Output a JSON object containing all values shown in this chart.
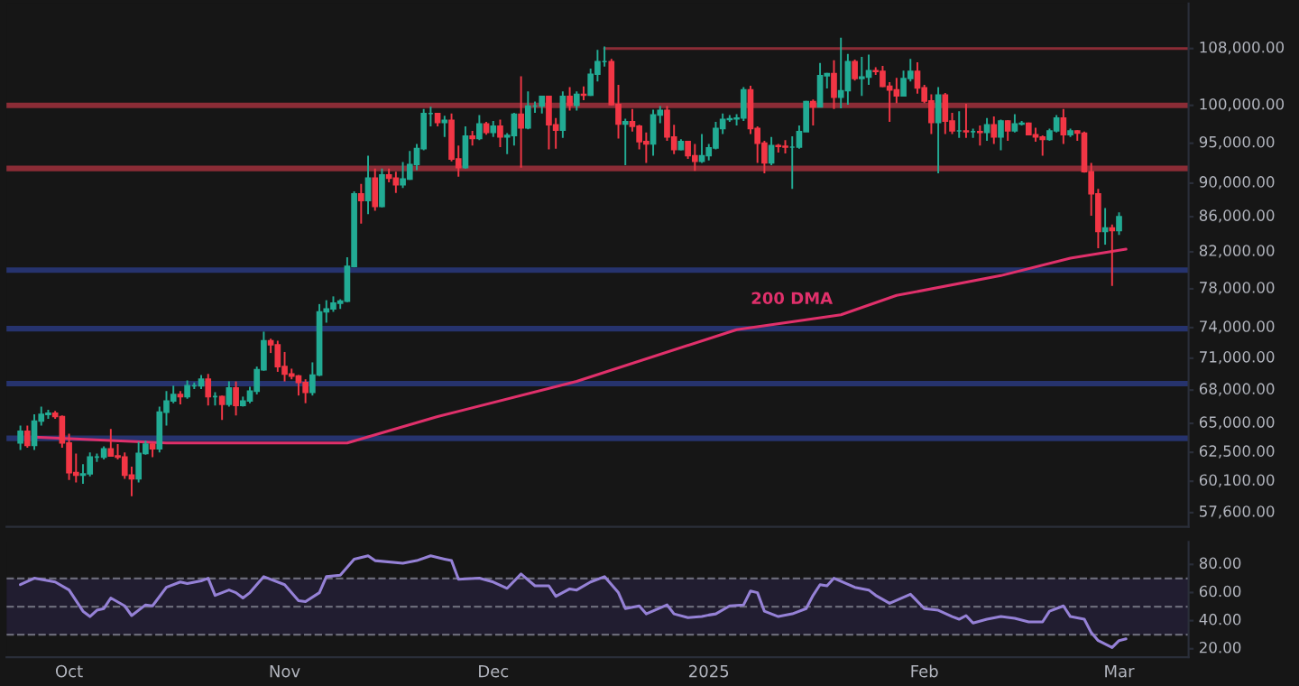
{
  "chart_data": [
    {
      "type": "candlestick",
      "log": "y",
      "tick_labels": "y",
      "xlim": [
        "2024-09-22",
        "2025-03-11"
      ],
      "ylim": [
        56500,
        114800
      ],
      "yticks": [
        {
          "value": 108000,
          "label": "108,000.00"
        },
        {
          "value": 100000,
          "label": "100,000.00"
        },
        {
          "value": 95000,
          "label": "95,000.00"
        },
        {
          "value": 90000,
          "label": "90,000.00"
        },
        {
          "value": 86000,
          "label": "86,000.00"
        },
        {
          "value": 82000,
          "label": "82,000.00"
        },
        {
          "value": 78000,
          "label": "78,000.00"
        },
        {
          "value": 74000,
          "label": "74,000.00"
        },
        {
          "value": 71000,
          "label": "71,000.00"
        },
        {
          "value": 68000,
          "label": "68,000.00"
        },
        {
          "value": 65000,
          "label": "65,000.00"
        },
        {
          "value": 62500,
          "label": "62,500.00"
        },
        {
          "value": 60100,
          "label": "60,100.00"
        },
        {
          "value": 57600,
          "label": "57,600.00"
        }
      ],
      "x": [
        "2024-09-24",
        "2024-09-25",
        "2024-09-26",
        "2024-09-27",
        "2024-09-28",
        "2024-09-29",
        "2024-09-30",
        "2024-10-01",
        "2024-10-02",
        "2024-10-03",
        "2024-10-04",
        "2024-10-05",
        "2024-10-06",
        "2024-10-07",
        "2024-10-08",
        "2024-10-09",
        "2024-10-10",
        "2024-10-11",
        "2024-10-12",
        "2024-10-13",
        "2024-10-14",
        "2024-10-15",
        "2024-10-16",
        "2024-10-17",
        "2024-10-18",
        "2024-10-19",
        "2024-10-20",
        "2024-10-21",
        "2024-10-22",
        "2024-10-23",
        "2024-10-24",
        "2024-10-25",
        "2024-10-26",
        "2024-10-27",
        "2024-10-28",
        "2024-10-29",
        "2024-10-30",
        "2024-10-31",
        "2024-11-01",
        "2024-11-02",
        "2024-11-03",
        "2024-11-04",
        "2024-11-05",
        "2024-11-06",
        "2024-11-07",
        "2024-11-08",
        "2024-11-09",
        "2024-11-10",
        "2024-11-11",
        "2024-11-12",
        "2024-11-13",
        "2024-11-14",
        "2024-11-15",
        "2024-11-16",
        "2024-11-17",
        "2024-11-18",
        "2024-11-19",
        "2024-11-20",
        "2024-11-21",
        "2024-11-22",
        "2024-11-23",
        "2024-11-24",
        "2024-11-25",
        "2024-11-26",
        "2024-11-27",
        "2024-11-28",
        "2024-11-29",
        "2024-11-30",
        "2024-12-01",
        "2024-12-02",
        "2024-12-03",
        "2024-12-04",
        "2024-12-05",
        "2024-12-06",
        "2024-12-07",
        "2024-12-08",
        "2024-12-09",
        "2024-12-10",
        "2024-12-11",
        "2024-12-12",
        "2024-12-13",
        "2024-12-14",
        "2024-12-15",
        "2024-12-16",
        "2024-12-17",
        "2024-12-18",
        "2024-12-19",
        "2024-12-20",
        "2024-12-21",
        "2024-12-22",
        "2024-12-23",
        "2024-12-24",
        "2024-12-25",
        "2024-12-26",
        "2024-12-27",
        "2024-12-28",
        "2024-12-29",
        "2024-12-30",
        "2024-12-31",
        "2025-01-01",
        "2025-01-02",
        "2025-01-03",
        "2025-01-04",
        "2025-01-05",
        "2025-01-06",
        "2025-01-07",
        "2025-01-08",
        "2025-01-09",
        "2025-01-10",
        "2025-01-11",
        "2025-01-12",
        "2025-01-13",
        "2025-01-14",
        "2025-01-15",
        "2025-01-16",
        "2025-01-17",
        "2025-01-18",
        "2025-01-19",
        "2025-01-20",
        "2025-01-21",
        "2025-01-22",
        "2025-01-23",
        "2025-01-24",
        "2025-01-25",
        "2025-01-26",
        "2025-01-27",
        "2025-01-28",
        "2025-01-29",
        "2025-01-30",
        "2025-01-31",
        "2025-02-01",
        "2025-02-02",
        "2025-02-03",
        "2025-02-04",
        "2025-02-05",
        "2025-02-06",
        "2025-02-07",
        "2025-02-08",
        "2025-02-09",
        "2025-02-10",
        "2025-02-11",
        "2025-02-12",
        "2025-02-13",
        "2025-02-14",
        "2025-02-15",
        "2025-02-16",
        "2025-02-17",
        "2025-02-18",
        "2025-02-19",
        "2025-02-20",
        "2025-02-21",
        "2025-02-22",
        "2025-02-23",
        "2025-02-24",
        "2025-02-25",
        "2025-02-26",
        "2025-02-27",
        "2025-02-28",
        "2025-03-01"
      ],
      "ohlc": [
        [
          63300,
          64800,
          62700,
          64300
        ],
        [
          64300,
          64800,
          62900,
          63100
        ],
        [
          63100,
          65800,
          62700,
          65200
        ],
        [
          65200,
          66500,
          64800,
          65800
        ],
        [
          65800,
          66200,
          65400,
          65900
        ],
        [
          65900,
          66100,
          65400,
          65600
        ],
        [
          65600,
          65700,
          62900,
          63300
        ],
        [
          63300,
          64100,
          60200,
          60800
        ],
        [
          60800,
          62400,
          60000,
          60600
        ],
        [
          60600,
          61500,
          59900,
          60700
        ],
        [
          60700,
          62500,
          60500,
          62100
        ],
        [
          62100,
          62400,
          61700,
          62100
        ],
        [
          62100,
          63000,
          61900,
          62800
        ],
        [
          62800,
          64500,
          62200,
          62200
        ],
        [
          62200,
          63200,
          61900,
          62100
        ],
        [
          62100,
          62500,
          60300,
          60600
        ],
        [
          60600,
          61300,
          58900,
          60300
        ],
        [
          60300,
          63400,
          60000,
          62400
        ],
        [
          62400,
          63500,
          62300,
          63200
        ],
        [
          63200,
          63300,
          62100,
          62800
        ],
        [
          62800,
          66500,
          62500,
          66000
        ],
        [
          66000,
          67900,
          64800,
          67000
        ],
        [
          67000,
          68400,
          66800,
          67600
        ],
        [
          67600,
          67900,
          66700,
          67400
        ],
        [
          67400,
          68900,
          67200,
          68400
        ],
        [
          68400,
          68700,
          68100,
          68400
        ],
        [
          68400,
          69400,
          68100,
          69000
        ],
        [
          69000,
          69500,
          66600,
          67400
        ],
        [
          67400,
          67800,
          66600,
          67400
        ],
        [
          67400,
          67500,
          65300,
          66700
        ],
        [
          66700,
          68800,
          66500,
          68200
        ],
        [
          68200,
          68800,
          65700,
          66600
        ],
        [
          66600,
          67400,
          66500,
          67000
        ],
        [
          67000,
          68300,
          66800,
          67900
        ],
        [
          67900,
          70200,
          67600,
          69900
        ],
        [
          69900,
          73600,
          69800,
          72700
        ],
        [
          72700,
          72900,
          71500,
          72300
        ],
        [
          72300,
          72700,
          69700,
          70200
        ],
        [
          70200,
          71600,
          68800,
          69500
        ],
        [
          69500,
          70000,
          69000,
          69300
        ],
        [
          69300,
          69400,
          67500,
          68700
        ],
        [
          68700,
          69000,
          66800,
          67800
        ],
        [
          67800,
          70600,
          67500,
          69400
        ],
        [
          69400,
          76400,
          69300,
          75600
        ],
        [
          75600,
          76800,
          74500,
          75900
        ],
        [
          75900,
          77200,
          75600,
          76500
        ],
        [
          76500,
          76900,
          75900,
          76700
        ],
        [
          76700,
          81400,
          76600,
          80400
        ],
        [
          80400,
          89000,
          80300,
          88700
        ],
        [
          88700,
          89900,
          85200,
          87900
        ],
        [
          87900,
          93400,
          86300,
          90600
        ],
        [
          90600,
          91800,
          86700,
          87200
        ],
        [
          87200,
          91800,
          87100,
          91000
        ],
        [
          91000,
          91800,
          90100,
          90600
        ],
        [
          90600,
          91400,
          88800,
          89800
        ],
        [
          89800,
          92600,
          89400,
          90500
        ],
        [
          90500,
          94000,
          90400,
          92300
        ],
        [
          92300,
          94900,
          91600,
          94300
        ],
        [
          94300,
          99500,
          94100,
          98900
        ],
        [
          98900,
          99800,
          97200,
          98900
        ],
        [
          98900,
          98900,
          97200,
          97700
        ],
        [
          97700,
          98600,
          95800,
          98000
        ],
        [
          98000,
          98900,
          92700,
          93000
        ],
        [
          93000,
          94700,
          90800,
          91900
        ],
        [
          91900,
          97200,
          91800,
          95900
        ],
        [
          95900,
          96600,
          94700,
          95600
        ],
        [
          95600,
          98700,
          95400,
          97500
        ],
        [
          97500,
          97800,
          96100,
          96400
        ],
        [
          96400,
          97900,
          95800,
          97200
        ],
        [
          97200,
          98100,
          94500,
          95800
        ],
        [
          95800,
          96300,
          93600,
          96000
        ],
        [
          96000,
          99000,
          94700,
          98800
        ],
        [
          98800,
          104000,
          91900,
          97000
        ],
        [
          97000,
          101900,
          96800,
          99900
        ],
        [
          99900,
          100500,
          99000,
          99900
        ],
        [
          99900,
          101300,
          98900,
          101200
        ],
        [
          101200,
          101200,
          94200,
          97400
        ],
        [
          97400,
          98300,
          94300,
          96700
        ],
        [
          96700,
          101900,
          95700,
          101200
        ],
        [
          101200,
          102500,
          99300,
          100000
        ],
        [
          100000,
          101900,
          99300,
          101500
        ],
        [
          101500,
          102600,
          100700,
          101400
        ],
        [
          101400,
          105100,
          101300,
          104300
        ],
        [
          104300,
          107800,
          103300,
          106100
        ],
        [
          106100,
          108300,
          105400,
          106100
        ],
        [
          106100,
          106500,
          100000,
          100100
        ],
        [
          100100,
          102800,
          95600,
          97500
        ],
        [
          97500,
          98200,
          92200,
          97800
        ],
        [
          97800,
          99500,
          96500,
          97200
        ],
        [
          97200,
          97400,
          94200,
          95200
        ],
        [
          95200,
          96400,
          92500,
          94900
        ],
        [
          94900,
          99400,
          93400,
          98700
        ],
        [
          98700,
          99900,
          97600,
          99300
        ],
        [
          99300,
          99900,
          95300,
          95800
        ],
        [
          95800,
          97400,
          93600,
          94200
        ],
        [
          94200,
          95500,
          94100,
          95200
        ],
        [
          95200,
          95200,
          93000,
          93400
        ],
        [
          93400,
          94900,
          91500,
          92700
        ],
        [
          92700,
          96200,
          92500,
          93400
        ],
        [
          93400,
          94900,
          92800,
          94400
        ],
        [
          94400,
          97800,
          94200,
          96900
        ],
        [
          96900,
          98900,
          96200,
          98100
        ],
        [
          98100,
          98700,
          97800,
          98200
        ],
        [
          98200,
          98800,
          97300,
          98300
        ],
        [
          98300,
          102500,
          97900,
          102100
        ],
        [
          102100,
          102700,
          96200,
          96900
        ],
        [
          96900,
          97200,
          92500,
          95000
        ],
        [
          95000,
          95300,
          91200,
          92500
        ],
        [
          92500,
          95800,
          92200,
          94700
        ],
        [
          94700,
          94900,
          93800,
          94600
        ],
        [
          94600,
          95400,
          93700,
          94500
        ],
        [
          94500,
          95900,
          89300,
          94500
        ],
        [
          94500,
          97300,
          94300,
          96500
        ],
        [
          96500,
          100600,
          96500,
          100500
        ],
        [
          100500,
          100800,
          97300,
          99800
        ],
        [
          99800,
          105900,
          99800,
          104100
        ],
        [
          104100,
          104500,
          102300,
          104400
        ],
        [
          104400,
          106300,
          99500,
          101100
        ],
        [
          101100,
          109600,
          99600,
          102000
        ],
        [
          102000,
          107200,
          100100,
          106100
        ],
        [
          106100,
          106400,
          103400,
          103700
        ],
        [
          103700,
          106800,
          101300,
          103900
        ],
        [
          103900,
          107100,
          102800,
          104800
        ],
        [
          104800,
          105300,
          104200,
          104700
        ],
        [
          104700,
          105500,
          102500,
          102600
        ],
        [
          102600,
          103200,
          97800,
          102100
        ],
        [
          102100,
          103800,
          100300,
          101300
        ],
        [
          101300,
          104800,
          101300,
          103700
        ],
        [
          103700,
          106500,
          103300,
          104700
        ],
        [
          104700,
          106000,
          101600,
          102400
        ],
        [
          102400,
          102800,
          100300,
          100600
        ],
        [
          100600,
          101500,
          96200,
          97700
        ],
        [
          97700,
          102500,
          91200,
          101400
        ],
        [
          101400,
          101700,
          96200,
          97900
        ],
        [
          97900,
          99000,
          96200,
          96600
        ],
        [
          96600,
          99200,
          95700,
          96600
        ],
        [
          96600,
          100200,
          95700,
          96500
        ],
        [
          96500,
          96900,
          95700,
          96500
        ],
        [
          96500,
          97300,
          94700,
          96400
        ],
        [
          96400,
          98300,
          95300,
          97400
        ],
        [
          97400,
          98500,
          94900,
          95800
        ],
        [
          95800,
          98100,
          94100,
          97900
        ],
        [
          97900,
          98000,
          95300,
          96600
        ],
        [
          96600,
          98800,
          96400,
          97500
        ],
        [
          97500,
          97900,
          97300,
          97600
        ],
        [
          97600,
          97700,
          96100,
          96100
        ],
        [
          96100,
          97000,
          95200,
          95800
        ],
        [
          95800,
          96000,
          93400,
          95500
        ],
        [
          95500,
          96900,
          95300,
          96600
        ],
        [
          96600,
          98700,
          96400,
          98300
        ],
        [
          98300,
          99500,
          94900,
          96100
        ],
        [
          96100,
          96900,
          95800,
          96600
        ],
        [
          96600,
          96700,
          95300,
          96300
        ],
        [
          96300,
          96500,
          91300,
          91400
        ],
        [
          91400,
          92500,
          86100,
          88700
        ],
        [
          88700,
          89300,
          82400,
          84300
        ],
        [
          84300,
          87000,
          82800,
          84700
        ],
        [
          84700,
          85100,
          78300,
          84400
        ],
        [
          84400,
          86500,
          83900,
          86000
        ]
      ],
      "colors": [
        "#22ab94",
        "#f23645",
        "#22ab94",
        "#22ab94",
        "#22ab94",
        "#f23645",
        "#f23645",
        "#f23645",
        "#f23645",
        "#22ab94",
        "#22ab94",
        "#22ab94",
        "#22ab94",
        "#f23645",
        "#f23645",
        "#f23645",
        "#f23645",
        "#22ab94",
        "#22ab94",
        "#f23645",
        "#22ab94",
        "#22ab94",
        "#22ab94",
        "#f23645",
        "#22ab94",
        "#22ab94",
        "#22ab94",
        "#f23645",
        "#22ab94",
        "#f23645",
        "#22ab94",
        "#f23645",
        "#22ab94",
        "#22ab94",
        "#22ab94",
        "#22ab94",
        "#f23645",
        "#f23645",
        "#f23645",
        "#f23645",
        "#f23645",
        "#f23645",
        "#22ab94",
        "#22ab94",
        "#22ab94",
        "#22ab94",
        "#22ab94",
        "#22ab94",
        "#22ab94",
        "#f23645",
        "#22ab94",
        "#f23645",
        "#22ab94",
        "#f23645",
        "#f23645",
        "#22ab94",
        "#22ab94",
        "#22ab94",
        "#22ab94",
        "#22ab94",
        "#f23645",
        "#22ab94",
        "#f23645",
        "#f23645",
        "#22ab94",
        "#f23645",
        "#22ab94",
        "#f23645",
        "#22ab94",
        "#f23645",
        "#22ab94",
        "#22ab94",
        "#f23645",
        "#22ab94",
        "#22ab94",
        "#22ab94",
        "#f23645",
        "#f23645",
        "#22ab94",
        "#f23645",
        "#22ab94",
        "#f23645",
        "#22ab94",
        "#22ab94",
        "#22ab94",
        "#f23645",
        "#f23645",
        "#22ab94",
        "#f23645",
        "#f23645",
        "#f23645",
        "#22ab94",
        "#22ab94",
        "#f23645",
        "#f23645",
        "#22ab94",
        "#f23645",
        "#f23645",
        "#22ab94",
        "#22ab94",
        "#22ab94",
        "#22ab94",
        "#22ab94",
        "#22ab94",
        "#22ab94",
        "#f23645",
        "#f23645",
        "#f23645",
        "#22ab94",
        "#f23645",
        "#f23645",
        "#22ab94",
        "#22ab94",
        "#22ab94",
        "#f23645",
        "#22ab94",
        "#22ab94",
        "#f23645",
        "#22ab94",
        "#22ab94",
        "#f23645",
        "#22ab94",
        "#22ab94",
        "#f23645",
        "#f23645",
        "#f23645",
        "#f23645",
        "#22ab94",
        "#22ab94",
        "#f23645",
        "#f23645",
        "#f23645",
        "#22ab94",
        "#f23645",
        "#f23645",
        "#22ab94",
        "#f23645",
        "#22ab94",
        "#f23645",
        "#22ab94",
        "#f23645",
        "#22ab94",
        "#f23645",
        "#22ab94",
        "#22ab94",
        "#f23645",
        "#f23645",
        "#f23645",
        "#22ab94",
        "#22ab94",
        "#f23645",
        "#22ab94",
        "#f23645",
        "#f23645",
        "#f23645",
        "#f23645",
        "#22ab94",
        "#f23645",
        "#22ab94"
      ],
      "series": [
        {
          "type": "line",
          "name": "200 DMA",
          "color": "#e0306b",
          "x": [
            "2024-09-26",
            "2024-10-15",
            "2024-10-31",
            "2024-11-10",
            "2024-11-23",
            "2024-12-13",
            "2025-01-05",
            "2025-01-20",
            "2025-01-28",
            "2025-02-12",
            "2025-02-22",
            "2025-03-02"
          ],
          "values": [
            63800,
            63300,
            63300,
            63300,
            65600,
            68800,
            73800,
            75300,
            77300,
            79400,
            81300,
            82300
          ]
        },
        {
          "type": "line",
          "color": "#8b2c36",
          "x": [
            "2024-12-17",
            "2025-03-11"
          ],
          "values": [
            108000,
            108000
          ]
        }
      ],
      "ref_lines": [
        {
          "axis": "y",
          "value": 100000,
          "color": "#8b2c36"
        },
        {
          "axis": "y",
          "value": 91800,
          "color": "#8b2c36"
        },
        {
          "axis": "y",
          "value": 80000,
          "color": "#26336e"
        },
        {
          "axis": "y",
          "value": 73900,
          "color": "#26336e"
        },
        {
          "axis": "y",
          "value": 68600,
          "color": "#26336e"
        },
        {
          "axis": "y",
          "value": 63700,
          "color": "#26336e"
        }
      ]
    },
    {
      "type": "line",
      "xlim": [
        "2024-09-22",
        "2025-03-11"
      ],
      "xticks": [
        {
          "value": "2024-10-01",
          "label": "Oct"
        },
        {
          "value": "2024-11-01",
          "label": "Nov"
        },
        {
          "value": "2024-12-01",
          "label": "Dec"
        },
        {
          "value": "2025-01-01",
          "label": "2025"
        },
        {
          "value": "2025-02-01",
          "label": "Feb"
        },
        {
          "value": "2025-03-01",
          "label": "Mar"
        }
      ],
      "ylim": [
        14,
        96
      ],
      "yticks": [
        {
          "value": 80,
          "label": "80.00"
        },
        {
          "value": 60,
          "label": "60.00"
        },
        {
          "value": 40,
          "label": "40.00"
        },
        {
          "value": 20,
          "label": "20.00"
        }
      ],
      "bands": [
        {
          "axis": "y",
          "from": 30,
          "to": 70,
          "color": "#211d30"
        }
      ],
      "ref_lines": [
        {
          "axis": "y",
          "value": 70,
          "color": "#6a6a78",
          "line_style": "dashed"
        },
        {
          "axis": "y",
          "value": 50,
          "color": "#6a6a78",
          "line_style": "dashed"
        },
        {
          "axis": "y",
          "value": 30,
          "color": "#6a6a78",
          "line_style": "dashed"
        }
      ],
      "series": [
        {
          "color": "#9581d6",
          "x": [
            "2024-09-24",
            "2024-09-26",
            "2024-09-29",
            "2024-10-01",
            "2024-10-03",
            "2024-10-04",
            "2024-10-05",
            "2024-10-06",
            "2024-10-07",
            "2024-10-09",
            "2024-10-10",
            "2024-10-12",
            "2024-10-13",
            "2024-10-15",
            "2024-10-17",
            "2024-10-18",
            "2024-10-20",
            "2024-10-21",
            "2024-10-22",
            "2024-10-24",
            "2024-10-25",
            "2024-10-26",
            "2024-10-27",
            "2024-10-29",
            "2024-11-01",
            "2024-11-03",
            "2024-11-04",
            "2024-11-06",
            "2024-11-07",
            "2024-11-09",
            "2024-11-11",
            "2024-11-13",
            "2024-11-14",
            "2024-11-18",
            "2024-11-20",
            "2024-11-22",
            "2024-11-24",
            "2024-11-25",
            "2024-11-26",
            "2024-11-29",
            "2024-12-01",
            "2024-12-03",
            "2024-12-05",
            "2024-12-07",
            "2024-12-09",
            "2024-12-10",
            "2024-12-12",
            "2024-12-13",
            "2024-12-15",
            "2024-12-17",
            "2024-12-19",
            "2024-12-20",
            "2024-12-22",
            "2024-12-23",
            "2024-12-26",
            "2024-12-27",
            "2024-12-29",
            "2024-12-31",
            "2025-01-01",
            "2025-01-02",
            "2025-01-04",
            "2025-01-06",
            "2025-01-07",
            "2025-01-08",
            "2025-01-09",
            "2025-01-11",
            "2025-01-13",
            "2025-01-15",
            "2025-01-16",
            "2025-01-17",
            "2025-01-18",
            "2025-01-19",
            "2025-01-22",
            "2025-01-24",
            "2025-01-25",
            "2025-01-27",
            "2025-01-30",
            "2025-02-01",
            "2025-02-03",
            "2025-02-05",
            "2025-02-06",
            "2025-02-07",
            "2025-02-08",
            "2025-02-10",
            "2025-02-12",
            "2025-02-14",
            "2025-02-16",
            "2025-02-18",
            "2025-02-19",
            "2025-02-21",
            "2025-02-22",
            "2025-02-24",
            "2025-02-25",
            "2025-02-26",
            "2025-02-28",
            "2025-03-01",
            "2025-03-02"
          ],
          "values": [
            65.6,
            70.2,
            67.5,
            61.8,
            46.7,
            42.9,
            47.4,
            48.6,
            56.1,
            50.5,
            43.6,
            51.2,
            50.5,
            63.7,
            67.5,
            66.4,
            68.3,
            70.2,
            58.0,
            61.8,
            59.9,
            56.1,
            59.9,
            71.3,
            65.6,
            54.2,
            53.5,
            59.9,
            71.3,
            72.4,
            83.8,
            86.1,
            82.7,
            80.8,
            82.7,
            86.1,
            83.8,
            82.7,
            69.4,
            70.2,
            67.5,
            63.0,
            73.2,
            64.8,
            64.8,
            57.3,
            62.6,
            61.8,
            67.5,
            71.3,
            59.9,
            48.6,
            50.5,
            44.8,
            51.2,
            44.8,
            42.1,
            42.9,
            44.0,
            44.8,
            50.5,
            51.2,
            61.1,
            59.9,
            46.7,
            42.9,
            44.8,
            48.6,
            58.0,
            65.6,
            64.8,
            70.2,
            63.7,
            61.8,
            58.0,
            52.3,
            58.8,
            48.6,
            47.4,
            42.9,
            41.0,
            43.6,
            38.3,
            41.0,
            42.9,
            41.7,
            39.1,
            39.1,
            46.7,
            50.5,
            42.9,
            41.0,
            31.5,
            25.8,
            20.9,
            25.8,
            27.0
          ]
        }
      ]
    }
  ]
}
